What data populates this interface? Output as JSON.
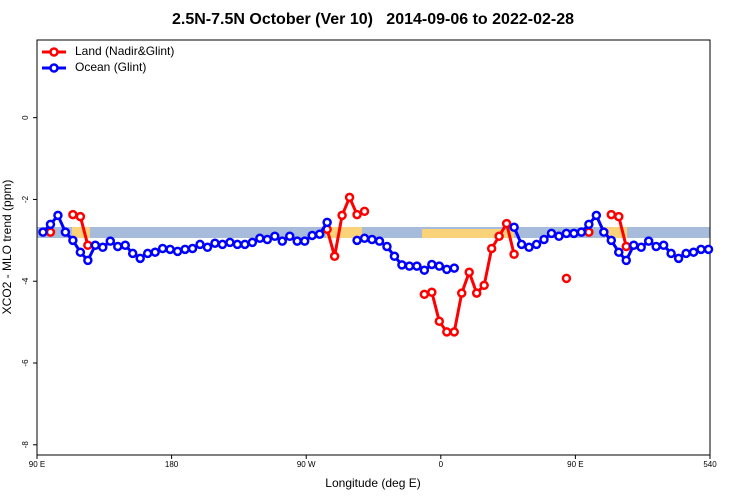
{
  "chart_data": {
    "type": "line",
    "title": "2.5N-7.5N October (Ver 10)   2014-09-06 to 2022-02-28",
    "x_label": "Longitude (deg E)",
    "y_label": "XCO2 - MLO trend (ppm)",
    "x": [
      94,
      99,
      104,
      109,
      114,
      119,
      124,
      129,
      134,
      139,
      144,
      149,
      154,
      159,
      164,
      169,
      174,
      179,
      184,
      189,
      194,
      199,
      204,
      209,
      214,
      219,
      224,
      229,
      234,
      239,
      244,
      249,
      254,
      259,
      264,
      269,
      274,
      279,
      284,
      289,
      294,
      299,
      304,
      309,
      314,
      319,
      324,
      329,
      334,
      339,
      344,
      349,
      354,
      359,
      364,
      369,
      374,
      379,
      384,
      389,
      394,
      399,
      404,
      409,
      414,
      419,
      424,
      429,
      434,
      439,
      444,
      449,
      454,
      459,
      464,
      469,
      474,
      479,
      484,
      489,
      494,
      499,
      504,
      509,
      514,
      519,
      524,
      529,
      534,
      539
    ],
    "series": [
      {
        "name": "Land (Nadir&Glint)",
        "color": "#ff0000",
        "values": [
          null,
          -2.8,
          null,
          null,
          -2.37,
          -2.42,
          -3.12,
          null,
          null,
          null,
          null,
          null,
          null,
          null,
          null,
          null,
          null,
          null,
          null,
          null,
          null,
          null,
          null,
          null,
          null,
          null,
          null,
          null,
          null,
          null,
          null,
          null,
          null,
          null,
          null,
          null,
          null,
          null,
          -2.73,
          -3.39,
          -2.39,
          -1.95,
          -2.37,
          -2.29,
          null,
          null,
          null,
          null,
          null,
          null,
          null,
          -4.32,
          -4.27,
          -4.98,
          -5.24,
          -5.24,
          -4.29,
          -3.78,
          -4.29,
          -4.1,
          -3.2,
          -2.9,
          -2.59,
          -3.34,
          null,
          null,
          null,
          null,
          null,
          null,
          -3.93,
          null,
          null,
          -2.8,
          null,
          null,
          -2.37,
          -2.42,
          -3.15,
          null,
          null,
          null,
          null,
          null,
          null,
          null,
          null,
          null,
          null,
          null
        ]
      },
      {
        "name": "Ocean (Glint)",
        "color": "#0000ff",
        "values": [
          -2.8,
          -2.61,
          -2.39,
          -2.8,
          -3.0,
          -3.29,
          -3.49,
          -3.12,
          -3.17,
          -3.02,
          -3.15,
          -3.12,
          -3.32,
          -3.44,
          -3.32,
          -3.29,
          -3.2,
          -3.22,
          -3.27,
          -3.22,
          -3.2,
          -3.1,
          -3.17,
          -3.07,
          -3.1,
          -3.05,
          -3.1,
          -3.1,
          -3.05,
          -2.95,
          -2.98,
          -2.9,
          -3.02,
          -2.9,
          -3.02,
          -3.02,
          -2.88,
          -2.85,
          -2.56,
          null,
          null,
          null,
          -3.0,
          -2.95,
          -2.98,
          -3.02,
          -3.15,
          -3.39,
          -3.6,
          -3.63,
          -3.63,
          -3.73,
          -3.59,
          -3.63,
          -3.71,
          -3.68,
          null,
          null,
          null,
          null,
          null,
          null,
          null,
          -2.68,
          -3.1,
          -3.17,
          -3.1,
          -2.98,
          -2.83,
          -2.9,
          -2.83,
          -2.83,
          -2.8,
          -2.61,
          -2.39,
          -2.8,
          -3.0,
          -3.29,
          -3.49,
          -3.12,
          -3.17,
          -3.02,
          -3.15,
          -3.12,
          -3.32,
          -3.44,
          -3.32,
          -3.29,
          -3.22,
          -3.22
        ]
      }
    ],
    "xlim": [
      90,
      540
    ],
    "xticks": [
      {
        "value": 90,
        "label": "90 E"
      },
      180,
      {
        "value": 270,
        "label": "90 W"
      },
      {
        "value": 360,
        "label": "0"
      },
      {
        "value": 450,
        "label": "90 E"
      },
      540
    ],
    "ylim": [
      -8.25,
      1.9
    ],
    "yticks": [
      0,
      -2,
      -4,
      -6,
      -8
    ],
    "legend": "upper left"
  }
}
